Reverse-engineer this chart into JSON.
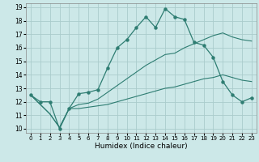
{
  "xlabel": "Humidex (Indice chaleur)",
  "background_color": "#cce8e8",
  "grid_color": "#aacccc",
  "line_color": "#2e7d72",
  "xlim": [
    -0.5,
    23.5
  ],
  "ylim": [
    9.7,
    19.3
  ],
  "xticks": [
    0,
    1,
    2,
    3,
    4,
    5,
    6,
    7,
    8,
    9,
    10,
    11,
    12,
    13,
    14,
    15,
    16,
    17,
    18,
    19,
    20,
    21,
    22,
    23
  ],
  "yticks": [
    10,
    11,
    12,
    13,
    14,
    15,
    16,
    17,
    18,
    19
  ],
  "line1_x": [
    0,
    1,
    2,
    3,
    4,
    5,
    6,
    7,
    8,
    9,
    10,
    11,
    12,
    13,
    14,
    15,
    16,
    17,
    18,
    19,
    20,
    21,
    22,
    23
  ],
  "line1_y": [
    12.5,
    12.0,
    12.0,
    10.0,
    11.5,
    12.6,
    12.7,
    12.9,
    14.5,
    16.0,
    16.6,
    17.5,
    18.3,
    17.5,
    18.9,
    18.3,
    18.1,
    16.4,
    16.2,
    15.3,
    13.5,
    12.5,
    12.0,
    12.3
  ],
  "line2_x": [
    0,
    2,
    3,
    4,
    5,
    6,
    7,
    8,
    9,
    10,
    11,
    12,
    13,
    14,
    15,
    16,
    17,
    18,
    19,
    20,
    21,
    22,
    23
  ],
  "line2_y": [
    12.5,
    11.1,
    10.1,
    11.5,
    11.8,
    11.9,
    12.2,
    12.7,
    13.2,
    13.7,
    14.2,
    14.7,
    15.1,
    15.5,
    15.6,
    16.0,
    16.3,
    16.6,
    16.9,
    17.1,
    16.8,
    16.6,
    16.5
  ],
  "line3_x": [
    0,
    2,
    3,
    4,
    5,
    6,
    7,
    8,
    9,
    10,
    11,
    12,
    13,
    14,
    15,
    16,
    17,
    18,
    19,
    20,
    21,
    22,
    23
  ],
  "line3_y": [
    12.5,
    11.1,
    10.1,
    11.5,
    11.5,
    11.6,
    11.7,
    11.8,
    12.0,
    12.2,
    12.4,
    12.6,
    12.8,
    13.0,
    13.1,
    13.3,
    13.5,
    13.7,
    13.8,
    14.0,
    13.8,
    13.6,
    13.5
  ]
}
